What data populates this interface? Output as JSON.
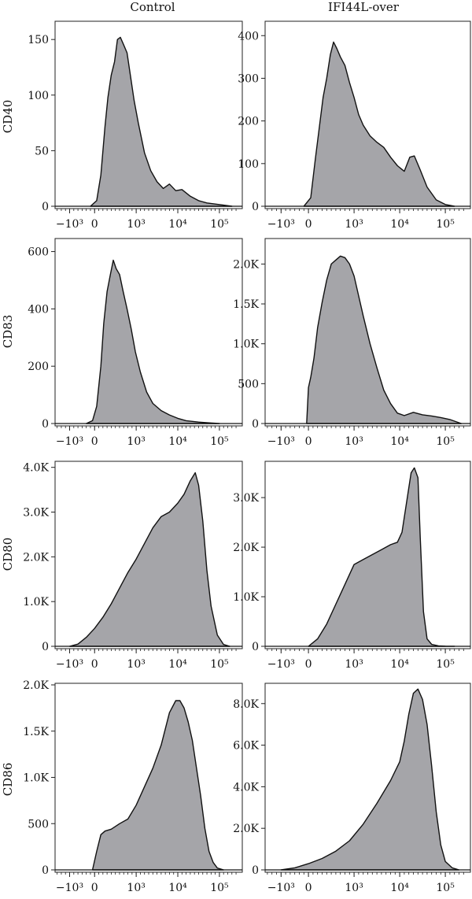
{
  "columns": [
    "Control",
    "IFI44L-over"
  ],
  "rows": [
    "CD40",
    "CD83",
    "CD80",
    "CD86"
  ],
  "x_tick_labels": [
    "−10³",
    "0",
    "10³",
    "10⁴",
    "10⁵"
  ],
  "chart_data": [
    {
      "type": "area",
      "row_label": "CD40",
      "column": "Control",
      "ylim": [
        0,
        165
      ],
      "yticks": [
        0,
        50,
        100,
        150
      ],
      "ytick_labels": [
        "0",
        "50",
        "100",
        "150"
      ],
      "x": [
        -0.1,
        0.05,
        0.15,
        0.25,
        0.32,
        0.4,
        0.48,
        0.55,
        0.62,
        0.7,
        0.78,
        0.86,
        0.95,
        1.05,
        1.2,
        1.35,
        1.5,
        1.65,
        1.8,
        1.95,
        2.1,
        2.3,
        2.5,
        2.7,
        2.9,
        3.1,
        3.3
      ],
      "values": [
        0,
        5,
        28,
        72,
        98,
        118,
        130,
        150,
        152,
        145,
        138,
        118,
        95,
        75,
        48,
        32,
        22,
        16,
        20,
        14,
        15,
        9,
        5,
        3,
        2,
        1,
        0
      ]
    },
    {
      "type": "area",
      "row_label": "CD40",
      "column": "IFI44L-over",
      "ylim": [
        0,
        430
      ],
      "yticks": [
        0,
        100,
        200,
        300,
        400
      ],
      "ytick_labels": [
        "0",
        "100",
        "200",
        "300",
        "400"
      ],
      "x": [
        -0.1,
        0.05,
        0.15,
        0.25,
        0.32,
        0.4,
        0.48,
        0.55,
        0.62,
        0.7,
        0.8,
        0.9,
        1.0,
        1.1,
        1.2,
        1.35,
        1.5,
        1.65,
        1.8,
        1.95,
        2.1,
        2.22,
        2.32,
        2.45,
        2.6,
        2.8,
        3.0,
        3.2
      ],
      "values": [
        0,
        20,
        110,
        195,
        255,
        300,
        355,
        385,
        370,
        350,
        330,
        290,
        255,
        215,
        190,
        165,
        150,
        138,
        115,
        95,
        82,
        115,
        118,
        85,
        45,
        15,
        4,
        0
      ]
    },
    {
      "type": "area",
      "row_label": "CD83",
      "column": "Control",
      "ylim": [
        0,
        640
      ],
      "yticks": [
        0,
        200,
        400,
        600
      ],
      "ytick_labels": [
        "0",
        "200",
        "400",
        "600"
      ],
      "x": [
        -0.2,
        -0.05,
        0.05,
        0.15,
        0.22,
        0.3,
        0.38,
        0.45,
        0.52,
        0.6,
        0.68,
        0.78,
        0.88,
        0.98,
        1.1,
        1.25,
        1.4,
        1.6,
        1.8,
        2.0,
        2.2,
        2.5,
        2.8,
        3.0
      ],
      "values": [
        0,
        10,
        60,
        200,
        350,
        460,
        520,
        570,
        540,
        520,
        465,
        400,
        330,
        250,
        180,
        110,
        70,
        45,
        30,
        18,
        10,
        5,
        2,
        0
      ]
    },
    {
      "type": "area",
      "row_label": "CD83",
      "column": "IFI44L-over",
      "ylim": [
        0,
        2300
      ],
      "yticks": [
        0,
        500,
        1000,
        1500,
        2000
      ],
      "ytick_labels": [
        "0",
        "500",
        "1.0K",
        "1.5K",
        "2.0K"
      ],
      "x": [
        -0.04,
        0.0,
        0.05,
        0.12,
        0.2,
        0.3,
        0.4,
        0.5,
        0.6,
        0.7,
        0.8,
        0.9,
        1.0,
        1.1,
        1.2,
        1.35,
        1.5,
        1.65,
        1.8,
        1.95,
        2.1,
        2.3,
        2.5,
        2.7,
        2.9,
        3.1,
        3.25,
        3.35
      ],
      "values": [
        0,
        450,
        580,
        820,
        1200,
        1520,
        1800,
        2000,
        2050,
        2100,
        2080,
        2000,
        1850,
        1600,
        1350,
        1000,
        700,
        420,
        250,
        130,
        100,
        140,
        110,
        95,
        75,
        50,
        20,
        0
      ]
    },
    {
      "type": "area",
      "row_label": "CD80",
      "column": "Control",
      "ylim": [
        0,
        4100
      ],
      "yticks": [
        0,
        1000,
        2000,
        3000,
        4000
      ],
      "ytick_labels": [
        "0",
        "1.0K",
        "2.0K",
        "3.0K",
        "4.0K"
      ],
      "x": [
        -0.6,
        -0.4,
        -0.2,
        0.0,
        0.2,
        0.4,
        0.6,
        0.8,
        1.0,
        1.2,
        1.4,
        1.6,
        1.8,
        2.0,
        2.15,
        2.3,
        2.42,
        2.5,
        2.6,
        2.7,
        2.8,
        2.95,
        3.1,
        3.25
      ],
      "values": [
        0,
        50,
        200,
        400,
        650,
        950,
        1300,
        1650,
        1950,
        2300,
        2650,
        2900,
        3000,
        3200,
        3400,
        3700,
        3880,
        3600,
        2800,
        1700,
        900,
        250,
        40,
        0
      ]
    },
    {
      "type": "area",
      "row_label": "CD80",
      "column": "IFI44L-over",
      "ylim": [
        0,
        3700
      ],
      "yticks": [
        0,
        1000,
        2000,
        3000
      ],
      "ytick_labels": [
        "0",
        "1.0K",
        "2.0K",
        "3.0K"
      ],
      "x": [
        0.0,
        0.2,
        0.4,
        0.6,
        0.8,
        1.0,
        1.2,
        1.4,
        1.6,
        1.8,
        1.95,
        2.05,
        2.15,
        2.25,
        2.32,
        2.4,
        2.45,
        2.52,
        2.6,
        2.7,
        2.85,
        3.0,
        3.2
      ],
      "values": [
        0,
        150,
        450,
        850,
        1250,
        1650,
        1750,
        1850,
        1950,
        2050,
        2100,
        2300,
        2900,
        3500,
        3600,
        3400,
        2200,
        700,
        150,
        40,
        10,
        3,
        0
      ]
    },
    {
      "type": "area",
      "row_label": "CD86",
      "column": "Control",
      "ylim": [
        0,
        2000
      ],
      "yticks": [
        0,
        500,
        1000,
        1500,
        2000
      ],
      "ytick_labels": [
        "0",
        "500",
        "1.0K",
        "1.5K",
        "2.0K"
      ],
      "x": [
        -0.05,
        0.05,
        0.15,
        0.25,
        0.4,
        0.6,
        0.8,
        1.0,
        1.2,
        1.4,
        1.6,
        1.8,
        1.95,
        2.05,
        2.15,
        2.25,
        2.35,
        2.45,
        2.55,
        2.65,
        2.75,
        2.85,
        2.95,
        3.1
      ],
      "values": [
        0,
        200,
        380,
        420,
        440,
        500,
        550,
        700,
        900,
        1100,
        1350,
        1700,
        1830,
        1830,
        1750,
        1600,
        1400,
        1100,
        800,
        450,
        200,
        80,
        20,
        0
      ]
    },
    {
      "type": "area",
      "row_label": "CD86",
      "column": "IFI44L-over",
      "ylim": [
        0,
        8900
      ],
      "yticks": [
        0,
        2000,
        4000,
        6000,
        8000
      ],
      "ytick_labels": [
        "0",
        "2.0K",
        "4.0K",
        "6.0K",
        "8.0K"
      ],
      "x": [
        -0.6,
        -0.3,
        0.0,
        0.3,
        0.6,
        0.9,
        1.2,
        1.5,
        1.8,
        2.0,
        2.1,
        2.2,
        2.3,
        2.4,
        2.5,
        2.6,
        2.7,
        2.8,
        2.9,
        3.0,
        3.15,
        3.3
      ],
      "values": [
        0,
        100,
        300,
        550,
        900,
        1400,
        2200,
        3200,
        4300,
        5200,
        6200,
        7500,
        8500,
        8700,
        8200,
        7000,
        5000,
        2800,
        1200,
        400,
        100,
        0
      ]
    }
  ]
}
